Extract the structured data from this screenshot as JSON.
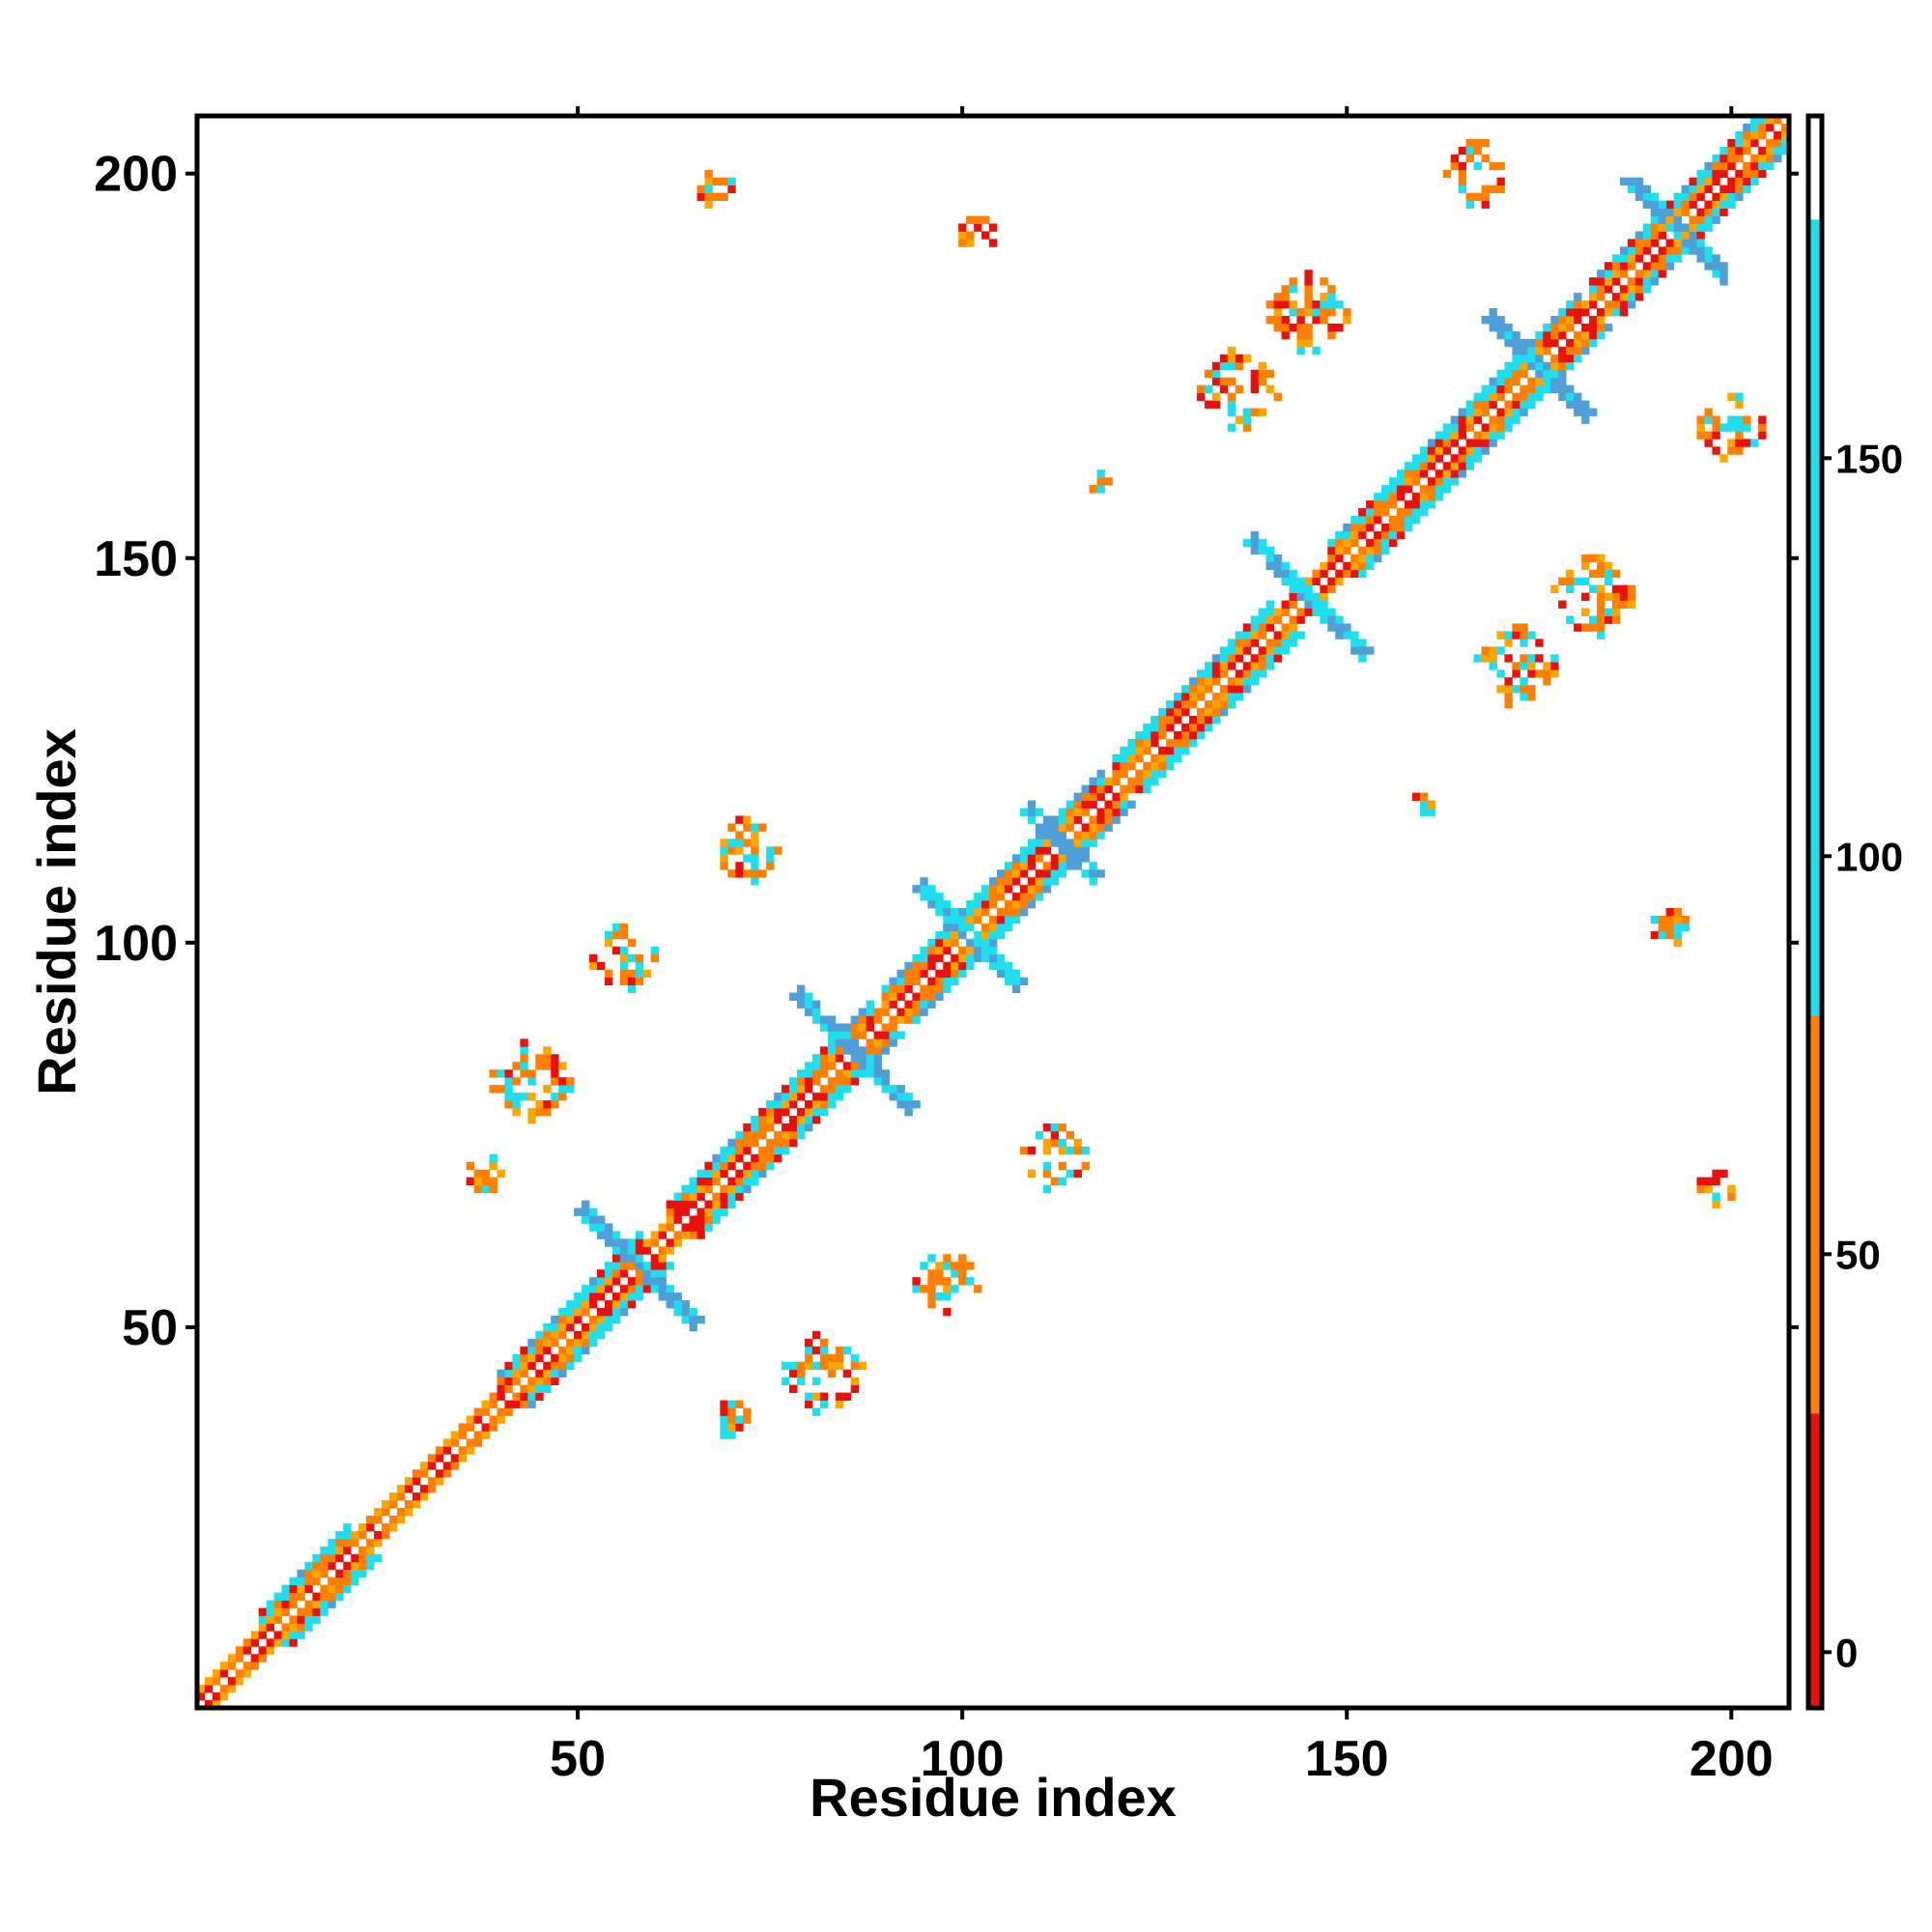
{
  "chart_data": {
    "type": "heatmap",
    "title": "",
    "xlabel": "Residue index",
    "ylabel": "Residue index",
    "xlim": [
      1,
      207
    ],
    "ylim": [
      1,
      207
    ],
    "x_ticks": [
      50,
      100,
      150,
      200
    ],
    "y_ticks": [
      50,
      100,
      150,
      200
    ],
    "grid": false,
    "colorbar": {
      "position": "right",
      "range": [
        -7,
        193
      ],
      "ticks": [
        0,
        50,
        100,
        150
      ],
      "bands": [
        {
          "from": -7,
          "to": 30,
          "color": "#e8110c"
        },
        {
          "from": 30,
          "to": 80,
          "color": "#ff7f00"
        },
        {
          "from": 80,
          "to": 180,
          "color": "#1fdfef"
        },
        {
          "from": 180,
          "to": 193,
          "color": "#ffffff"
        }
      ]
    },
    "series": [
      {
        "range": [
          0,
          30
        ],
        "color": "#e8110c"
      },
      {
        "range": [
          30,
          80
        ],
        "color": "#ff7f00"
      },
      {
        "range": [
          80,
          130
        ],
        "color": "#ffa500"
      },
      {
        "range": [
          130,
          180
        ],
        "color": "#1fdfef"
      },
      {
        "range": [
          180,
          193
        ],
        "color": "#4f9fd9"
      }
    ],
    "diagonal_band": {
      "from": 1,
      "to": 207,
      "half_width": 4
    },
    "helix_segments": [
      {
        "start": 9,
        "end": 20
      },
      {
        "start": 40,
        "end": 58
      },
      {
        "start": 62,
        "end": 88
      },
      {
        "start": 90,
        "end": 118
      },
      {
        "start": 120,
        "end": 140
      },
      {
        "start": 148,
        "end": 180
      },
      {
        "start": 182,
        "end": 206
      }
    ],
    "contact_clusters": [
      {
        "x": 44,
        "y": 82,
        "size": 5
      },
      {
        "x": 82,
        "y": 44,
        "size": 5
      },
      {
        "x": 56,
        "y": 98,
        "size": 4
      },
      {
        "x": 98,
        "y": 56,
        "size": 4
      },
      {
        "x": 38,
        "y": 70,
        "size": 2
      },
      {
        "x": 70,
        "y": 38,
        "size": 2
      },
      {
        "x": 72,
        "y": 112,
        "size": 4
      },
      {
        "x": 112,
        "y": 72,
        "size": 4
      },
      {
        "x": 102,
        "y": 192,
        "size": 2
      },
      {
        "x": 192,
        "y": 102,
        "size": 2
      },
      {
        "x": 136,
        "y": 172,
        "size": 5
      },
      {
        "x": 172,
        "y": 136,
        "size": 5
      },
      {
        "x": 145,
        "y": 182,
        "size": 5
      },
      {
        "x": 182,
        "y": 145,
        "size": 5
      },
      {
        "x": 167,
        "y": 200,
        "size": 4
      },
      {
        "x": 200,
        "y": 167,
        "size": 4
      },
      {
        "x": 68,
        "y": 198,
        "size": 2
      },
      {
        "x": 198,
        "y": 68,
        "size": 2
      },
      {
        "x": 118,
        "y": 160,
        "size": 1
      },
      {
        "x": 160,
        "y": 118,
        "size": 1
      }
    ],
    "cross_clusters": [
      {
        "x": 58,
        "y": 58,
        "size": 7
      },
      {
        "x": 86,
        "y": 86,
        "size": 7
      },
      {
        "x": 101,
        "y": 101,
        "size": 6
      },
      {
        "x": 113,
        "y": 113,
        "size": 4
      },
      {
        "x": 145,
        "y": 145,
        "size": 7
      },
      {
        "x": 175,
        "y": 175,
        "size": 6
      },
      {
        "x": 193,
        "y": 193,
        "size": 6
      }
    ]
  }
}
